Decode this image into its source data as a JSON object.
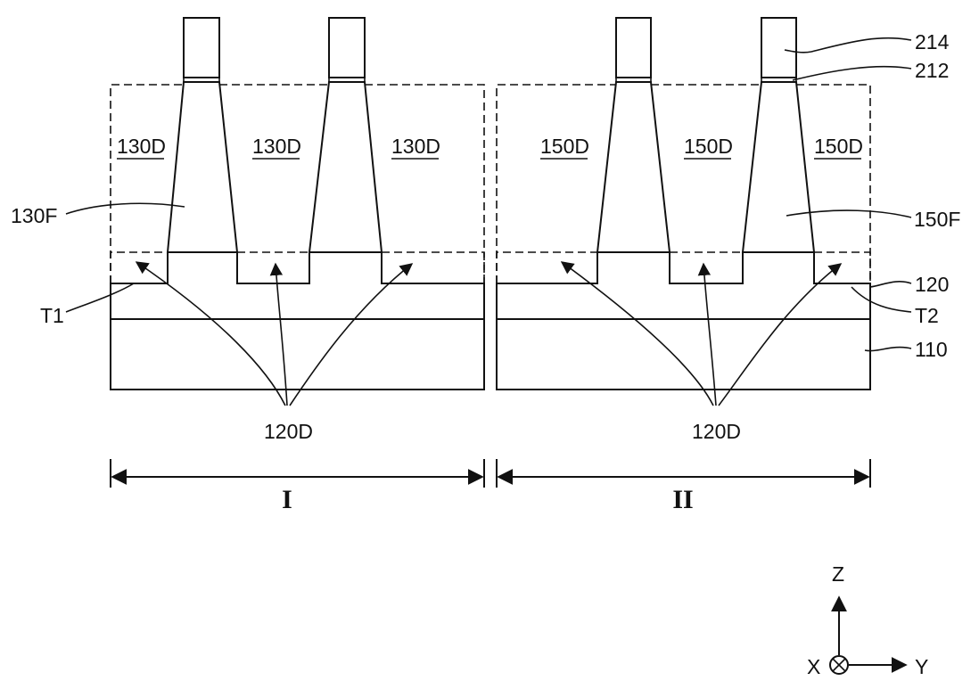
{
  "labels": {
    "region1_dummy": "130D",
    "region2_dummy": "150D",
    "fin1": "130F",
    "fin2": "150F",
    "layer_214": "214",
    "layer_212": "212",
    "layer_120": "120",
    "substrate": "110",
    "t1": "T1",
    "t2": "T2",
    "dummy_120d": "120D",
    "region1": "I",
    "region2": "II"
  },
  "axes": {
    "z": "Z",
    "x": "X",
    "y": "Y"
  }
}
